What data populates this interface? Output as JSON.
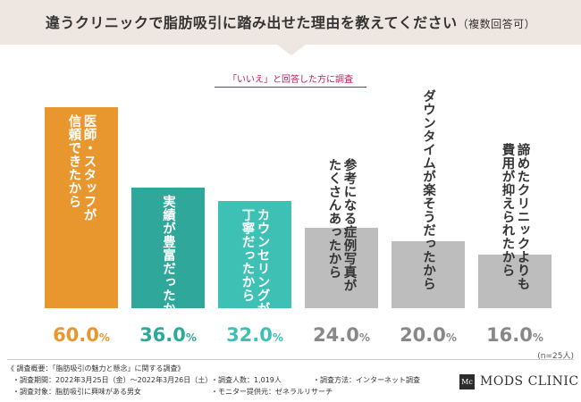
{
  "header": {
    "title": "違うクリニックで脂肪吸引に踏み出せた理由を教えてください",
    "note": "（複数回答可）"
  },
  "condition": "「いいえ」と回答した方に調査",
  "chart_data": {
    "type": "bar",
    "categories": [
      [
        "医師・スタッフが",
        "信頼できたから"
      ],
      [
        "実績が豊富だったから"
      ],
      [
        "カウンセリングが",
        "丁寧だったから"
      ],
      [
        "参考になる症例写真が",
        "たくさんあったから"
      ],
      [
        "ダウンタイムが楽そうだったから"
      ],
      [
        "諦めたクリニックよりも",
        "費用が抑えられたから"
      ]
    ],
    "values": [
      60.0,
      36.0,
      32.0,
      24.0,
      20.0,
      16.0
    ],
    "value_labels": [
      "60.0",
      "36.0",
      "32.0",
      "24.0",
      "20.0",
      "16.0"
    ],
    "unit": "%",
    "ylim": [
      0,
      60
    ],
    "colors": [
      "#e8962e",
      "#2fa89b",
      "#3fc0b5",
      "#bdbdbd",
      "#bdbdbd",
      "#bdbdbd"
    ],
    "label_colors": [
      "#ffffff",
      "#ffffff",
      "#ffffff",
      "#333333",
      "#333333",
      "#333333"
    ],
    "value_colors": [
      "#e8962e",
      "#2fa89b",
      "#3fc0b5",
      "#888888",
      "#888888",
      "#888888"
    ],
    "grid": false,
    "legend": "none"
  },
  "n_note": "(n=25人)",
  "survey": {
    "overview": "《 調査概要：「脂肪吸引の魅力と懸念」に関する調査》",
    "period": "・調査期間：2022年3月25日（金）〜2022年3月26日（土）",
    "count": "・調査人数：1,019人",
    "method": "・調査方法：インターネット調査",
    "target": "・調査対象：脂肪吸引に興味がある男女",
    "provider": "・モニター提供元：ゼネラルリサーチ"
  },
  "logo": {
    "mark": "Mc",
    "text": "MODS CLINIC"
  }
}
